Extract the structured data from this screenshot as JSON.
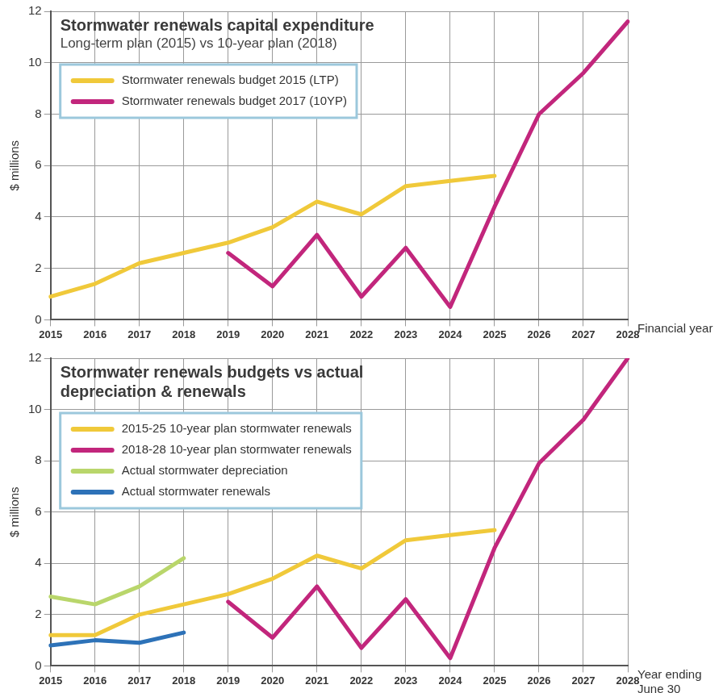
{
  "chart_data": [
    {
      "type": "line",
      "title": "Stormwater renewals capital expenditure",
      "subtitle": "Long-term plan (2015) vs 10-year plan (2018)",
      "x_label": "Financial year",
      "y_label": "$ millions",
      "categories": [
        "2015",
        "2016",
        "2017",
        "2018",
        "2019",
        "2020",
        "2021",
        "2022",
        "2023",
        "2024",
        "2025",
        "2026",
        "2027",
        "2028"
      ],
      "series": [
        {
          "name": "Stormwater renewals budget 2015 (LTP)",
          "color": "#f0c93a",
          "values": [
            0.9,
            1.4,
            2.2,
            2.6,
            3.0,
            3.6,
            4.6,
            4.1,
            5.2,
            5.4,
            5.6,
            null,
            null,
            null
          ]
        },
        {
          "name": "Stormwater renewals budget 2017 (10YP)",
          "color": "#c2267c",
          "values": [
            null,
            null,
            null,
            null,
            2.6,
            1.3,
            3.3,
            0.9,
            2.8,
            0.5,
            4.4,
            8.0,
            9.6,
            11.6
          ]
        }
      ],
      "ylim": [
        0,
        12
      ],
      "yticks": [
        0,
        2,
        4,
        6,
        8,
        10,
        12
      ],
      "grid": true,
      "legend": "top-left"
    },
    {
      "type": "line",
      "title": "Stormwater renewals budgets vs actual depreciation & renewals",
      "x_label": [
        "Year ending",
        "June 30"
      ],
      "y_label": "$ millions",
      "categories": [
        "2015",
        "2016",
        "2017",
        "2018",
        "2019",
        "2020",
        "2021",
        "2022",
        "2023",
        "2024",
        "2025",
        "2026",
        "2027",
        "2028"
      ],
      "series": [
        {
          "name": "2015-25 10-year plan stormwater renewals",
          "color": "#f0c93a",
          "values": [
            1.2,
            1.2,
            2.0,
            2.4,
            2.8,
            3.4,
            4.3,
            3.8,
            4.9,
            5.1,
            5.3,
            null,
            null,
            null
          ]
        },
        {
          "name": "2018-28 10-year plan stormwater renewals",
          "color": "#c2267c",
          "values": [
            null,
            null,
            null,
            null,
            2.5,
            1.1,
            3.1,
            0.7,
            2.6,
            0.3,
            4.6,
            7.9,
            9.6,
            12.0
          ]
        },
        {
          "name": "Actual stormwater depreciation",
          "color": "#b9d66b",
          "values": [
            2.7,
            2.4,
            3.1,
            4.2,
            null,
            null,
            null,
            null,
            null,
            null,
            null,
            null,
            null,
            null
          ]
        },
        {
          "name": "Actual stormwater renewals",
          "color": "#2d72b8",
          "values": [
            0.8,
            1.0,
            0.9,
            1.3,
            null,
            null,
            null,
            null,
            null,
            null,
            null,
            null,
            null,
            null
          ]
        }
      ],
      "ylim": [
        0,
        12
      ],
      "yticks": [
        0,
        2,
        4,
        6,
        8,
        10,
        12
      ],
      "grid": true,
      "legend": "top-left"
    }
  ]
}
